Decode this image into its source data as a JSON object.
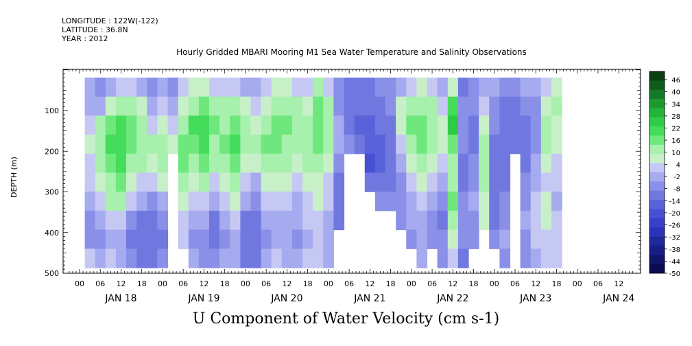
{
  "meta": {
    "longitude": "LONGITUDE : 122W(-122)",
    "latitude": "LATITUDE : 36.8N",
    "year": "YEAR : 2012"
  },
  "chart_data": {
    "type": "heatmap",
    "title": "Hourly Gridded MBARI Mooring M1 Sea Water Temperature and Salinity Observations",
    "xlabel": "U Component of Water Velocity (cm s-1)",
    "ylabel": "DEPTH (m)",
    "ylim": [
      500,
      0
    ],
    "yticks": [
      100,
      200,
      300,
      400,
      500
    ],
    "xtick_hours": [
      "00",
      "06",
      "12",
      "18",
      "00",
      "06",
      "12",
      "18",
      "00",
      "06",
      "12",
      "18",
      "00",
      "06",
      "12",
      "18",
      "00",
      "06",
      "12",
      "18",
      "00",
      "06",
      "12",
      "18",
      "00",
      "06",
      "12"
    ],
    "xdays": [
      "JAN 18",
      "JAN 19",
      "JAN 20",
      "JAN 21",
      "JAN 22",
      "JAN 23",
      "JAN 24"
    ],
    "colorbar": {
      "labels": [
        "46",
        "40",
        "34",
        "28",
        "22",
        "16",
        "10",
        "4",
        "-2",
        "-8",
        "-14",
        "-20",
        "-26",
        "-32",
        "-38",
        "-44",
        "-50"
      ],
      "colors": [
        "#0a3d12",
        "#0f5a1c",
        "#157a26",
        "#1c9a30",
        "#24b43a",
        "#2ecc46",
        "#44dc5a",
        "#6ee87c",
        "#a8f0ae",
        "#c8f0c8",
        "#c6c8f4",
        "#a6aaee",
        "#8a90e8",
        "#7078e0",
        "#5a62da",
        "#4650d2",
        "#3640c8",
        "#2a34b8",
        "#20289e",
        "#181e84",
        "#10156a",
        "#0a0c52"
      ]
    },
    "grid_notes": "field values in cm s-1; white areas are missing data",
    "columns": [
      {
        "t": 3,
        "profile": [
          -4,
          -2,
          4,
          6,
          4,
          2,
          -2,
          -6,
          -6,
          2
        ]
      },
      {
        "t": 6,
        "profile": [
          -6,
          -2,
          10,
          14,
          12,
          8,
          2,
          -4,
          -8,
          -2
        ]
      },
      {
        "t": 9,
        "profile": [
          -2,
          6,
          16,
          20,
          18,
          14,
          10,
          2,
          -4,
          2
        ]
      },
      {
        "t": 12,
        "profile": [
          2,
          12,
          22,
          22,
          20,
          16,
          12,
          4,
          -2,
          0
        ]
      },
      {
        "t": 15,
        "profile": [
          4,
          14,
          16,
          18,
          14,
          8,
          2,
          -6,
          -10,
          -8
        ]
      },
      {
        "t": 18,
        "profile": [
          0,
          8,
          10,
          14,
          12,
          4,
          -4,
          -10,
          -12,
          -10
        ]
      },
      {
        "t": 21,
        "profile": [
          -6,
          -2,
          4,
          10,
          8,
          2,
          -6,
          -12,
          -14,
          -10
        ]
      },
      {
        "t": 24,
        "profile": [
          -4,
          2,
          8,
          14,
          14,
          8,
          0,
          -8,
          -10,
          -6
        ]
      },
      {
        "t": 27,
        "profile": [
          -8,
          -4,
          2,
          6,
          null,
          null,
          null,
          null,
          null,
          null
        ]
      },
      {
        "t": 30,
        "profile": [
          2,
          8,
          14,
          18,
          16,
          12,
          8,
          4,
          2,
          null
        ]
      },
      {
        "t": 33,
        "profile": [
          6,
          14,
          20,
          18,
          14,
          8,
          4,
          -2,
          -6,
          -4
        ]
      },
      {
        "t": 36,
        "profile": [
          8,
          16,
          22,
          20,
          16,
          10,
          2,
          -4,
          -8,
          -6
        ]
      },
      {
        "t": 39,
        "profile": [
          4,
          12,
          16,
          14,
          10,
          4,
          -4,
          -10,
          -12,
          -8
        ]
      },
      {
        "t": 42,
        "profile": [
          2,
          10,
          14,
          16,
          12,
          8,
          4,
          -2,
          -6,
          -4
        ]
      },
      {
        "t": 45,
        "profile": [
          4,
          12,
          18,
          20,
          16,
          12,
          8,
          2,
          -2,
          0
        ]
      },
      {
        "t": 48,
        "profile": [
          0,
          6,
          10,
          12,
          8,
          2,
          -4,
          -10,
          -12,
          -10
        ]
      },
      {
        "t": 51,
        "profile": [
          -4,
          2,
          8,
          10,
          6,
          0,
          -8,
          -12,
          -14,
          -12
        ]
      },
      {
        "t": 54,
        "profile": [
          2,
          8,
          14,
          16,
          12,
          6,
          2,
          -4,
          -6,
          -4
        ]
      },
      {
        "t": 57,
        "profile": [
          6,
          12,
          18,
          16,
          12,
          8,
          4,
          0,
          -2,
          2
        ]
      },
      {
        "t": 60,
        "profile": [
          8,
          14,
          16,
          14,
          10,
          6,
          2,
          -2,
          -4,
          0
        ]
      },
      {
        "t": 63,
        "profile": [
          4,
          10,
          12,
          12,
          8,
          4,
          0,
          -4,
          -6,
          -2
        ]
      },
      {
        "t": 66,
        "profile": [
          2,
          8,
          12,
          14,
          12,
          8,
          4,
          2,
          0,
          2
        ]
      },
      {
        "t": 69,
        "profile": [
          10,
          16,
          18,
          16,
          12,
          8,
          6,
          4,
          2,
          4
        ]
      },
      {
        "t": 72,
        "profile": [
          4,
          10,
          12,
          10,
          8,
          4,
          2,
          0,
          -2,
          0
        ]
      },
      {
        "t": 75,
        "profile": [
          -8,
          -6,
          -4,
          -2,
          -6,
          -10,
          -12,
          -10,
          null,
          null
        ]
      },
      {
        "t": 78,
        "profile": [
          -10,
          -12,
          -14,
          -8,
          null,
          null,
          null,
          null,
          null,
          null
        ]
      },
      {
        "t": 81,
        "profile": [
          -12,
          -14,
          -16,
          -14,
          null,
          null,
          null,
          null,
          null,
          null
        ]
      },
      {
        "t": 84,
        "profile": [
          -10,
          -12,
          -16,
          -18,
          -20,
          -14,
          null,
          null,
          null,
          null
        ]
      },
      {
        "t": 87,
        "profile": [
          -8,
          -10,
          -12,
          -16,
          -18,
          -12,
          -8,
          null,
          null,
          null
        ]
      },
      {
        "t": 90,
        "profile": [
          -6,
          -8,
          -10,
          -12,
          -14,
          -10,
          -6,
          null,
          null,
          null
        ]
      },
      {
        "t": 93,
        "profile": [
          0,
          6,
          8,
          4,
          -2,
          -6,
          -8,
          -6,
          null,
          null
        ]
      },
      {
        "t": 96,
        "profile": [
          4,
          12,
          16,
          12,
          6,
          2,
          -2,
          -4,
          -6,
          null
        ]
      },
      {
        "t": 99,
        "profile": [
          6,
          14,
          18,
          16,
          12,
          8,
          4,
          0,
          -4,
          -2
        ]
      },
      {
        "t": 102,
        "profile": [
          2,
          10,
          12,
          10,
          6,
          2,
          -2,
          -6,
          -8,
          null
        ]
      },
      {
        "t": 105,
        "profile": [
          -4,
          2,
          6,
          8,
          4,
          -2,
          -6,
          -10,
          -8,
          -6
        ]
      },
      {
        "t": 108,
        "profile": [
          8,
          22,
          28,
          18,
          14,
          12,
          16,
          14,
          8,
          4
        ]
      },
      {
        "t": 111,
        "profile": [
          -10,
          -8,
          -6,
          -8,
          -10,
          -12,
          -8,
          -6,
          -8,
          -10
        ]
      },
      {
        "t": 114,
        "profile": [
          -6,
          -8,
          -10,
          -12,
          -8,
          -6,
          -4,
          -6,
          -8,
          null
        ]
      },
      {
        "t": 117,
        "profile": [
          -2,
          4,
          8,
          12,
          14,
          10,
          8,
          6,
          null,
          null
        ]
      },
      {
        "t": 120,
        "profile": [
          -4,
          -6,
          -8,
          -10,
          -12,
          -14,
          -12,
          -10,
          -8,
          null
        ]
      },
      {
        "t": 123,
        "profile": [
          -6,
          -10,
          -12,
          -14,
          -12,
          -10,
          -8,
          -6,
          -4,
          -8
        ]
      },
      {
        "t": 126,
        "profile": [
          -8,
          -10,
          -12,
          -10,
          null,
          null,
          null,
          null,
          null,
          null
        ]
      },
      {
        "t": 129,
        "profile": [
          -4,
          -8,
          -10,
          -12,
          -10,
          -8,
          -6,
          -4,
          -6,
          -8
        ]
      },
      {
        "t": 132,
        "profile": [
          -2,
          -6,
          -8,
          -6,
          -4,
          -2,
          2,
          4,
          2,
          -2
        ]
      },
      {
        "t": 135,
        "profile": [
          4,
          8,
          12,
          10,
          6,
          4,
          6,
          8,
          4,
          2
        ]
      },
      {
        "t": 138,
        "profile": [
          6,
          10,
          8,
          6,
          4,
          2,
          0,
          2,
          4,
          4
        ]
      }
    ]
  }
}
